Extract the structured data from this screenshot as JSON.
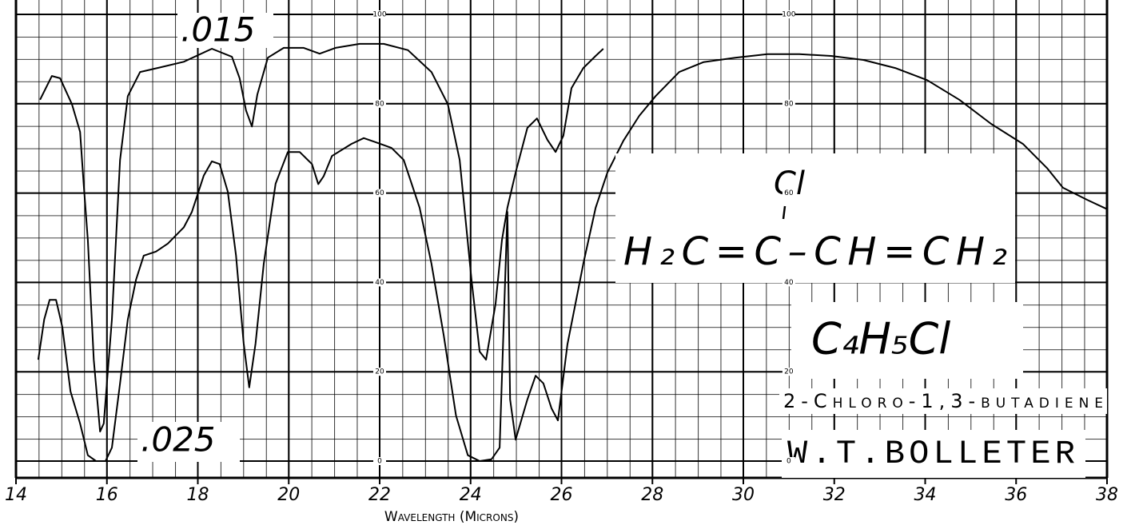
{
  "chart_data": {
    "type": "line",
    "x_label": "Wavelength (Microns)",
    "xlim": [
      14,
      38
    ],
    "xticks": [
      14,
      16,
      18,
      20,
      22,
      24,
      26,
      28,
      30,
      32,
      34,
      36,
      38
    ],
    "ylim": [
      0,
      100
    ],
    "yticks": [
      0,
      20,
      40,
      60,
      80,
      100
    ],
    "grid": true,
    "series": [
      {
        "name": ".015",
        "color": "#000000",
        "x": [
          14.53,
          14.79,
          14.97,
          15.23,
          15.41,
          15.49,
          15.58,
          15.71,
          15.85,
          15.93,
          16.11,
          16.29,
          16.46,
          16.73,
          17.16,
          17.69,
          18.31,
          18.75,
          18.92,
          19.06,
          19.19,
          19.31,
          19.54,
          19.89,
          20.33,
          20.68,
          21.03,
          21.56,
          22.09,
          22.62,
          23.14,
          23.5,
          23.76,
          24.02,
          24.2,
          24.34,
          24.55,
          24.69,
          24.81,
          24.99,
          25.25,
          25.46,
          25.69,
          25.87,
          26.04,
          26.22,
          26.48,
          26.75,
          26.92
        ],
        "values": [
          80.9,
          86.2,
          85.7,
          79.9,
          73.7,
          62.0,
          49.5,
          22.7,
          6.6,
          8.4,
          31.7,
          67.4,
          81.7,
          87.1,
          88.1,
          89.4,
          92.3,
          90.5,
          85.7,
          78.5,
          74.9,
          82.1,
          90.3,
          92.5,
          92.5,
          91.2,
          92.5,
          93.4,
          93.4,
          92.0,
          87.1,
          79.9,
          67.4,
          40.6,
          24.5,
          22.7,
          35.2,
          49.5,
          56.7,
          64.6,
          74.6,
          76.7,
          71.9,
          69.2,
          72.8,
          83.5,
          88.0,
          90.7,
          92.3
        ]
      },
      {
        "name": ".025",
        "color": "#000000",
        "x": [
          14.49,
          14.62,
          14.74,
          14.88,
          15.02,
          15.2,
          15.41,
          15.58,
          15.76,
          15.97,
          16.11,
          16.29,
          16.46,
          16.64,
          16.81,
          17.08,
          17.34,
          17.69,
          17.87,
          18.13,
          18.31,
          18.48,
          18.66,
          18.84,
          19.01,
          19.13,
          19.27,
          19.45,
          19.71,
          19.98,
          20.24,
          20.51,
          20.65,
          20.77,
          20.95,
          21.38,
          21.65,
          21.91,
          22.26,
          22.53,
          22.88,
          23.14,
          23.41,
          23.68,
          23.94,
          24.2,
          24.46,
          24.64,
          24.76,
          24.81,
          24.87,
          24.99,
          25.25,
          25.43,
          25.6,
          25.78,
          25.92,
          26.13,
          26.48,
          26.75,
          27.01,
          27.36,
          27.71,
          28.07,
          28.59,
          29.12,
          29.82,
          30.53,
          31.23,
          31.93,
          32.64,
          33.34,
          34.04,
          34.75,
          35.45,
          36.15,
          36.68,
          37.03,
          37.56,
          38.0
        ],
        "values": [
          22.7,
          31.7,
          36.1,
          36.1,
          30.0,
          15.6,
          8.4,
          1.3,
          0,
          0,
          3.0,
          17.4,
          31.7,
          40.6,
          46.0,
          46.9,
          48.7,
          52.3,
          55.8,
          63.9,
          67.1,
          66.5,
          60.3,
          46.0,
          26.3,
          16.5,
          26.3,
          44.2,
          62.1,
          69.2,
          69.2,
          66.5,
          62.0,
          63.8,
          68.3,
          71.0,
          72.3,
          71.4,
          70.1,
          67.4,
          56.7,
          44.2,
          28.1,
          10.2,
          1.3,
          0,
          0.4,
          3.0,
          40.6,
          55.8,
          13.8,
          4.8,
          13.8,
          19.1,
          17.4,
          11.8,
          9.1,
          26.1,
          44.2,
          56.7,
          64.6,
          71.7,
          77.3,
          81.7,
          87.1,
          89.3,
          90.3,
          91.1,
          91.1,
          90.7,
          89.8,
          88.0,
          85.3,
          80.9,
          75.5,
          71.0,
          65.6,
          61.2,
          58.5,
          56.4
        ]
      }
    ],
    "annotations": {
      "substituent": "Cl",
      "structure": "H₂C=C–CH=CH₂",
      "formula": "C₄H₅Cl",
      "compound": "2-Chloro-1,3-butadiene",
      "author": "W.T.BOLLETER"
    }
  }
}
